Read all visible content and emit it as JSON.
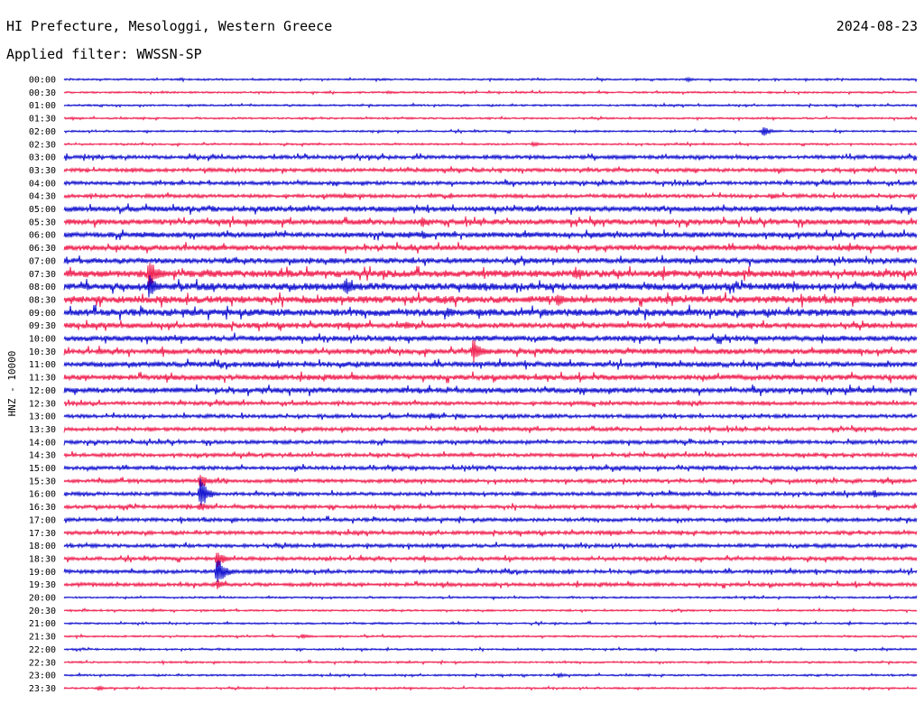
{
  "header": {
    "station": "HI Prefecture, Mesologgi, Western Greece",
    "date": "2024-08-23",
    "filter_label": "Applied filter:",
    "filter_value": "WWSSN-SP"
  },
  "colors": {
    "even_trace": "#0000cc",
    "odd_trace": "#ee1144",
    "text": "#000000"
  },
  "chart_data": {
    "type": "line",
    "title": "HI Prefecture, Mesologgi, Western Greece",
    "ylabel": "HNZ - 10000",
    "grid": false,
    "trace_labels": [
      "00:00",
      "00:30",
      "01:00",
      "01:30",
      "02:00",
      "02:30",
      "03:00",
      "03:30",
      "04:00",
      "04:30",
      "05:00",
      "05:30",
      "06:00",
      "06:30",
      "07:00",
      "07:30",
      "08:00",
      "08:30",
      "09:00",
      "09:30",
      "10:00",
      "10:30",
      "11:00",
      "11:30",
      "12:00",
      "12:30",
      "13:00",
      "13:30",
      "14:00",
      "14:30",
      "15:00",
      "15:30",
      "16:00",
      "16:30",
      "17:00",
      "17:30",
      "18:00",
      "18:30",
      "19:00",
      "19:30",
      "20:00",
      "20:30",
      "21:00",
      "21:30",
      "22:00",
      "22:30",
      "23:00",
      "23:30"
    ],
    "noise_level": [
      1,
      1,
      1,
      1,
      1,
      1,
      2,
      2,
      2,
      2,
      3,
      3,
      3,
      3,
      3,
      4,
      4,
      4,
      4,
      3,
      3,
      3,
      3,
      3,
      3,
      2,
      2,
      2,
      2,
      2,
      2,
      2,
      2,
      2,
      2,
      2,
      2,
      2,
      2,
      2,
      1,
      1,
      1,
      1,
      1,
      1,
      1,
      1
    ],
    "events": [
      {
        "row": 0,
        "t": 0.73,
        "amp": 3
      },
      {
        "row": 1,
        "t": 0.38,
        "amp": 2
      },
      {
        "row": 4,
        "t": 0.82,
        "amp": 6
      },
      {
        "row": 5,
        "t": 0.55,
        "amp": 3
      },
      {
        "row": 7,
        "t": 0.08,
        "amp": 3
      },
      {
        "row": 7,
        "t": 0.84,
        "amp": 3
      },
      {
        "row": 9,
        "t": 0.33,
        "amp": 4
      },
      {
        "row": 9,
        "t": 0.83,
        "amp": 4
      },
      {
        "row": 11,
        "t": 0.42,
        "amp": 7
      },
      {
        "row": 12,
        "t": 0.42,
        "amp": 5
      },
      {
        "row": 13,
        "t": 0.86,
        "amp": 5
      },
      {
        "row": 15,
        "t": 0.1,
        "amp": 18
      },
      {
        "row": 15,
        "t": 0.6,
        "amp": 8
      },
      {
        "row": 16,
        "t": 0.1,
        "amp": 14
      },
      {
        "row": 16,
        "t": 0.33,
        "amp": 12
      },
      {
        "row": 17,
        "t": 0.58,
        "amp": 8
      },
      {
        "row": 18,
        "t": 0.45,
        "amp": 7
      },
      {
        "row": 18,
        "t": 0.56,
        "amp": 5
      },
      {
        "row": 19,
        "t": 0.4,
        "amp": 6
      },
      {
        "row": 20,
        "t": 0.77,
        "amp": 4
      },
      {
        "row": 21,
        "t": 0.48,
        "amp": 16
      },
      {
        "row": 21,
        "t": 0.19,
        "amp": 4
      },
      {
        "row": 21,
        "t": 0.92,
        "amp": 4
      },
      {
        "row": 23,
        "t": 0.86,
        "amp": 3
      },
      {
        "row": 25,
        "t": 0.72,
        "amp": 4
      },
      {
        "row": 26,
        "t": 0.43,
        "amp": 5
      },
      {
        "row": 28,
        "t": 0.64,
        "amp": 3
      },
      {
        "row": 29,
        "t": 0.44,
        "amp": 2
      },
      {
        "row": 30,
        "t": 0.77,
        "amp": 4
      },
      {
        "row": 31,
        "t": 0.16,
        "amp": 10
      },
      {
        "row": 31,
        "t": 0.96,
        "amp": 4
      },
      {
        "row": 32,
        "t": 0.16,
        "amp": 18
      },
      {
        "row": 32,
        "t": 0.95,
        "amp": 5
      },
      {
        "row": 33,
        "t": 0.16,
        "amp": 6
      },
      {
        "row": 34,
        "t": 0.05,
        "amp": 3
      },
      {
        "row": 36,
        "t": 0.3,
        "amp": 3
      },
      {
        "row": 37,
        "t": 0.18,
        "amp": 10
      },
      {
        "row": 38,
        "t": 0.18,
        "amp": 18
      },
      {
        "row": 39,
        "t": 0.18,
        "amp": 6
      },
      {
        "row": 43,
        "t": 0.28,
        "amp": 3
      },
      {
        "row": 46,
        "t": 0.58,
        "amp": 3
      },
      {
        "row": 47,
        "t": 0.04,
        "amp": 3
      }
    ]
  }
}
